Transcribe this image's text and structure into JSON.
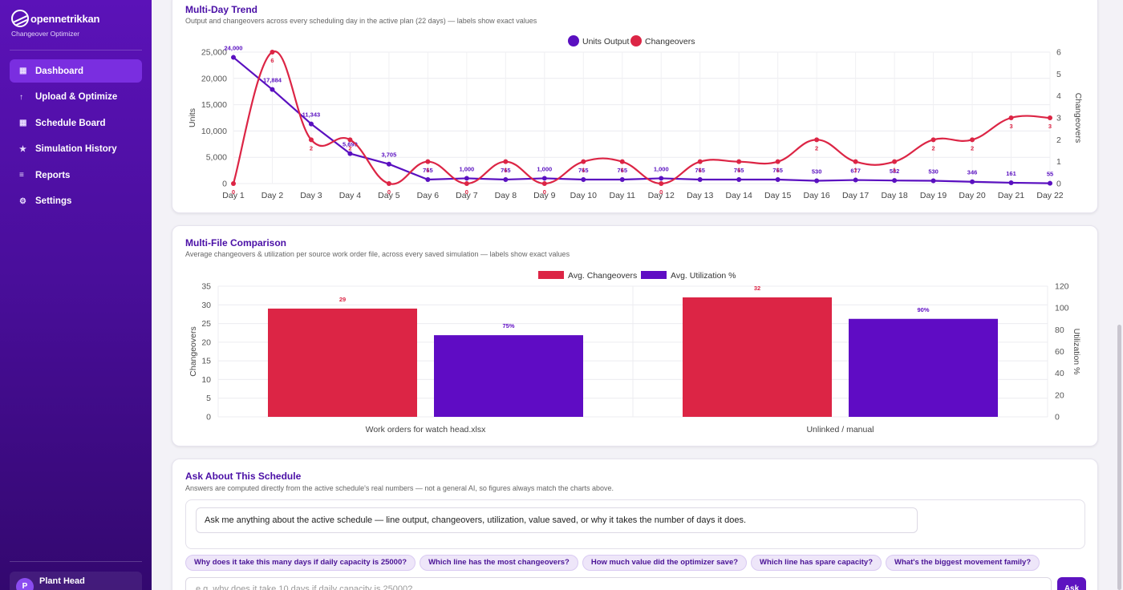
{
  "sidebar": {
    "brand_name": "opennetrikkan",
    "brand_sub": "Changeover Optimizer",
    "items": [
      {
        "label": "Dashboard",
        "icon": "square-icon",
        "glyph": "▦",
        "active": true
      },
      {
        "label": "Upload & Optimize",
        "icon": "upload-arrow-icon",
        "glyph": "↑",
        "active": false
      },
      {
        "label": "Schedule Board",
        "icon": "board-icon",
        "glyph": "▦",
        "active": false
      },
      {
        "label": "Simulation History",
        "icon": "star-icon",
        "glyph": "★",
        "active": false
      },
      {
        "label": "Reports",
        "icon": "list-icon",
        "glyph": "≡",
        "active": false
      },
      {
        "label": "Settings",
        "icon": "gear-icon",
        "glyph": "⚙",
        "active": false
      }
    ],
    "user": {
      "initial": "P",
      "name": "Plant Head"
    }
  },
  "trend": {
    "title": "Multi-Day Trend",
    "subtitle": "Output and changeovers across every scheduling day in the active plan (22 days) — labels show exact values"
  },
  "comparison": {
    "title": "Multi-File Comparison",
    "subtitle": "Average changeovers & utilization per source work order file, across every saved simulation — labels show exact values"
  },
  "ask": {
    "title": "Ask About This Schedule",
    "subtitle": "Answers are computed directly from the active schedule's real numbers — not a general AI, so figures always match the charts above.",
    "message": "Ask me anything about the active schedule — line output, changeovers, utilization, value saved, or why it takes the number of days it does.",
    "chips": [
      "Why does it take this many days if daily capacity is 25000?",
      "Which line has the most changeovers?",
      "How much value did the optimizer save?",
      "Which line has spare capacity?",
      "What's the biggest movement family?"
    ],
    "placeholder": "e.g. why does it take 10 days if daily capacity is 25000?",
    "button": "Ask"
  },
  "chart_data": [
    {
      "type": "line",
      "x": [
        "Day 1",
        "Day 2",
        "Day 3",
        "Day 4",
        "Day 5",
        "Day 6",
        "Day 7",
        "Day 8",
        "Day 9",
        "Day 10",
        "Day 11",
        "Day 12",
        "Day 13",
        "Day 14",
        "Day 15",
        "Day 16",
        "Day 17",
        "Day 18",
        "Day 19",
        "Day 20",
        "Day 21",
        "Day 22"
      ],
      "series": [
        {
          "name": "Units Output",
          "axis": "left",
          "color": "#5a10c0",
          "values": [
            24000,
            17884,
            11343,
            5699,
            3705,
            765,
            1000,
            765,
            1000,
            765,
            765,
            1000,
            765,
            765,
            765,
            530,
            677,
            582,
            530,
            346,
            161,
            55
          ]
        },
        {
          "name": "Changeovers",
          "axis": "right",
          "color": "#dc2545",
          "values": [
            0,
            6,
            2,
            2,
            0,
            1,
            0,
            1,
            0,
            1,
            1,
            0,
            1,
            1,
            1,
            2,
            1,
            1,
            2,
            2,
            3,
            3
          ]
        }
      ],
      "ylabel": "Units",
      "y2label": "Changeovers",
      "ylim": [
        0,
        25000
      ],
      "y2lim": [
        0,
        6
      ],
      "yticks": [
        0,
        5000,
        10000,
        15000,
        20000,
        25000
      ],
      "yticklabels": [
        "0",
        "5,000",
        "10,000",
        "15,000",
        "20,000",
        "25,000"
      ],
      "y2ticks": [
        0,
        1,
        2,
        3,
        4,
        5,
        6
      ],
      "legend": "top-center",
      "grid": true
    },
    {
      "type": "bar",
      "categories": [
        "Work orders for watch head.xlsx",
        "Unlinked / manual"
      ],
      "series": [
        {
          "name": "Avg. Changeovers",
          "axis": "left",
          "color": "#dc2545",
          "values": [
            29,
            32
          ],
          "labels": [
            "29",
            "32"
          ]
        },
        {
          "name": "Avg. Utilization %",
          "axis": "right",
          "color": "#5f0cc4",
          "values": [
            75,
            90
          ],
          "labels": [
            "75%",
            "90%"
          ]
        }
      ],
      "ylabel": "Changeovers",
      "y2label": "Utilization %",
      "ylim": [
        0,
        35
      ],
      "y2lim": [
        0,
        120
      ],
      "yticks": [
        0,
        5,
        10,
        15,
        20,
        25,
        30,
        35
      ],
      "y2ticks": [
        0,
        20,
        40,
        60,
        80,
        100,
        120
      ],
      "legend": "top-center",
      "grid": true
    }
  ]
}
